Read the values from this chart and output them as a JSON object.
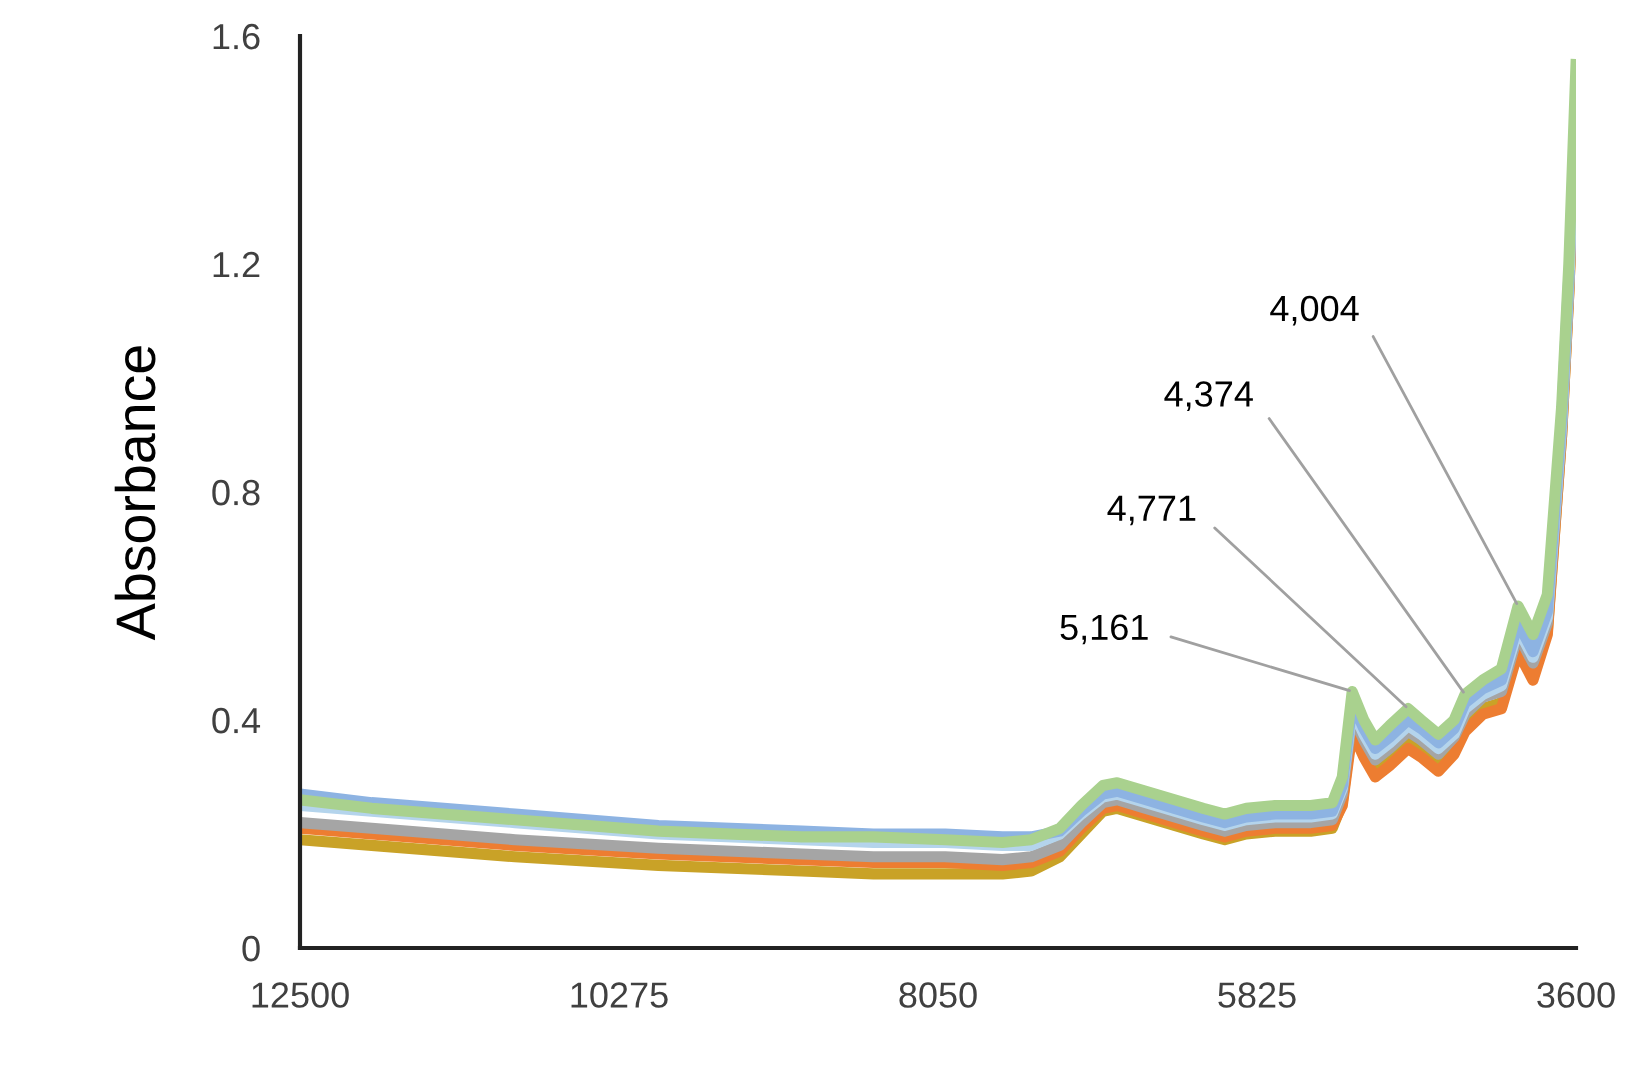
{
  "chart_data": {
    "type": "line",
    "ylabel": "Absorbance",
    "x": [
      12500,
      12000,
      11000,
      10000,
      9000,
      8500,
      8000,
      7600,
      7400,
      7200,
      7050,
      6900,
      6800,
      6600,
      6400,
      6200,
      6050,
      5900,
      5700,
      5450,
      5300,
      5230,
      5161,
      5080,
      5000,
      4900,
      4771,
      4680,
      4560,
      4450,
      4374,
      4250,
      4120,
      4004,
      3900,
      3800,
      3700,
      3650,
      3600
    ],
    "series": [
      {
        "color": "#c9a227",
        "values": [
          0.19,
          0.18,
          0.16,
          0.145,
          0.135,
          0.13,
          0.13,
          0.13,
          0.135,
          0.16,
          0.2,
          0.24,
          0.245,
          0.23,
          0.215,
          0.2,
          0.19,
          0.2,
          0.205,
          0.205,
          0.21,
          0.255,
          0.39,
          0.345,
          0.31,
          0.33,
          0.36,
          0.345,
          0.32,
          0.35,
          0.39,
          0.42,
          0.43,
          0.53,
          0.48,
          0.555,
          0.9,
          1.15,
          1.49
        ]
      },
      {
        "color": "#ed7d31",
        "values": [
          0.21,
          0.2,
          0.18,
          0.165,
          0.155,
          0.15,
          0.15,
          0.145,
          0.15,
          0.17,
          0.21,
          0.245,
          0.25,
          0.235,
          0.22,
          0.205,
          0.195,
          0.205,
          0.21,
          0.21,
          0.215,
          0.25,
          0.38,
          0.335,
          0.3,
          0.32,
          0.35,
          0.335,
          0.31,
          0.34,
          0.38,
          0.41,
          0.42,
          0.52,
          0.47,
          0.55,
          0.9,
          1.15,
          1.48
        ]
      },
      {
        "color": "#a5a5a5",
        "values": [
          0.22,
          0.21,
          0.19,
          0.175,
          0.165,
          0.16,
          0.16,
          0.155,
          0.16,
          0.18,
          0.22,
          0.255,
          0.26,
          0.245,
          0.23,
          0.215,
          0.205,
          0.215,
          0.22,
          0.22,
          0.225,
          0.27,
          0.41,
          0.365,
          0.33,
          0.35,
          0.38,
          0.365,
          0.34,
          0.37,
          0.41,
          0.44,
          0.45,
          0.55,
          0.5,
          0.57,
          0.91,
          1.16,
          1.5
        ]
      },
      {
        "color": "#b4d4ec",
        "values": [
          0.25,
          0.24,
          0.22,
          0.2,
          0.19,
          0.185,
          0.185,
          0.18,
          0.18,
          0.2,
          0.235,
          0.265,
          0.27,
          0.255,
          0.24,
          0.225,
          0.215,
          0.225,
          0.23,
          0.23,
          0.235,
          0.28,
          0.42,
          0.375,
          0.34,
          0.36,
          0.39,
          0.375,
          0.35,
          0.375,
          0.42,
          0.445,
          0.46,
          0.56,
          0.51,
          0.58,
          0.92,
          1.17,
          1.51
        ]
      },
      {
        "color": "#8db3e2",
        "values": [
          0.27,
          0.255,
          0.235,
          0.215,
          0.205,
          0.2,
          0.2,
          0.195,
          0.195,
          0.205,
          0.24,
          0.27,
          0.275,
          0.26,
          0.245,
          0.23,
          0.22,
          0.23,
          0.235,
          0.235,
          0.24,
          0.285,
          0.43,
          0.385,
          0.35,
          0.37,
          0.4,
          0.385,
          0.36,
          0.385,
          0.43,
          0.455,
          0.47,
          0.57,
          0.52,
          0.59,
          0.93,
          1.18,
          null
        ]
      },
      {
        "color": "#a9d18e",
        "values": [
          0.26,
          0.245,
          0.225,
          0.205,
          0.195,
          0.195,
          0.19,
          0.185,
          0.19,
          0.21,
          0.25,
          0.285,
          0.29,
          0.275,
          0.26,
          0.245,
          0.235,
          0.245,
          0.25,
          0.25,
          0.255,
          0.3,
          0.45,
          0.4,
          0.365,
          0.39,
          0.42,
          0.4,
          0.375,
          0.4,
          0.445,
          0.47,
          0.49,
          0.6,
          0.55,
          0.62,
          0.95,
          1.2,
          1.55
        ]
      }
    ],
    "annotations": [
      {
        "text": "4,004",
        "x": 4004,
        "y": 0.6
      },
      {
        "text": "4,374",
        "x": 4374,
        "y": 0.445
      },
      {
        "text": "4,771",
        "x": 4771,
        "y": 0.42
      },
      {
        "text": "5,161",
        "x": 5161,
        "y": 0.45
      }
    ],
    "xlim": [
      12500,
      3600
    ],
    "xticks": [
      12500,
      10275,
      8050,
      5825,
      3600
    ],
    "ylim": [
      0,
      1.6
    ],
    "yticks": [
      0,
      0.4,
      0.8,
      1.2,
      1.6
    ],
    "grid": false,
    "legend": false,
    "marker": "none",
    "line_style": "solid"
  }
}
